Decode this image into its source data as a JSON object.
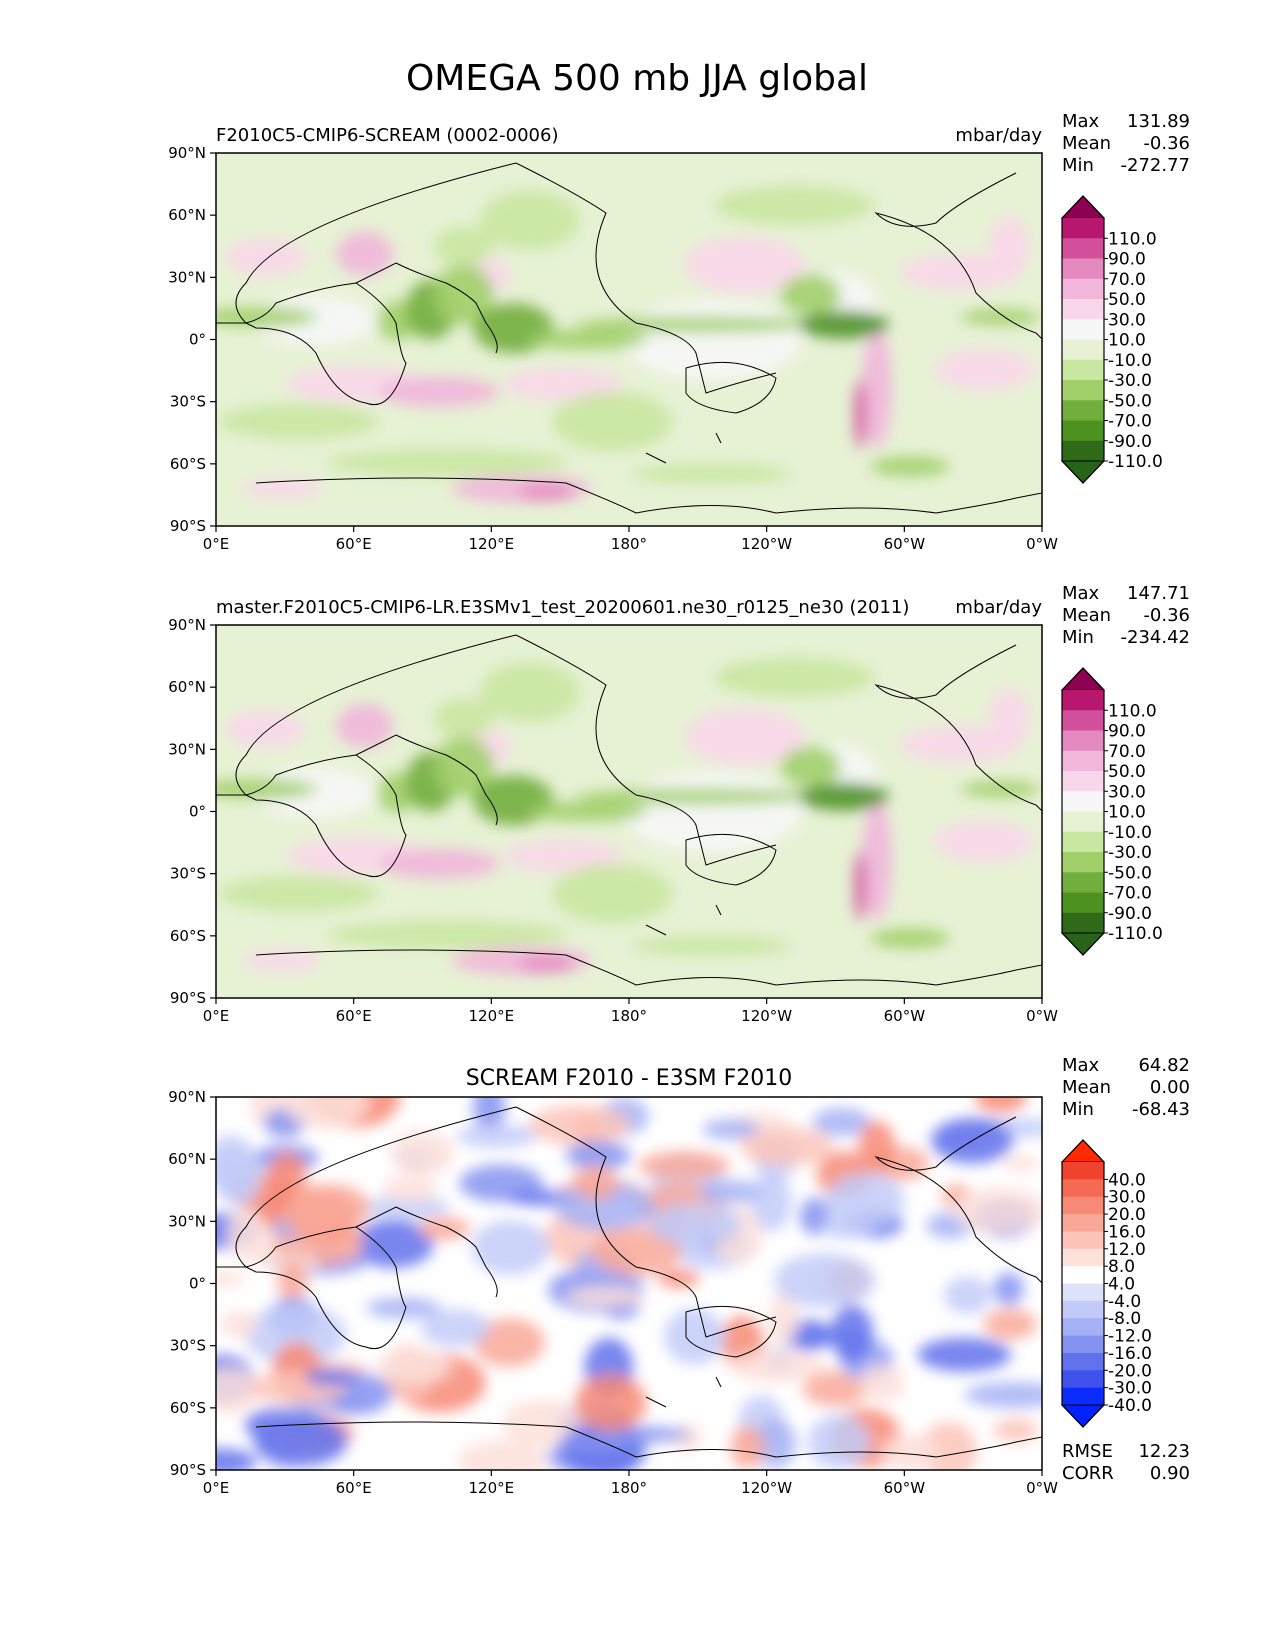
{
  "title": "OMEGA 500 mb JJA global",
  "x_ticks": [
    "0°E",
    "60°E",
    "120°E",
    "180°",
    "120°W",
    "60°W",
    "0°W"
  ],
  "y_ticks": [
    "90°N",
    "60°N",
    "30°N",
    "0°",
    "30°S",
    "60°S",
    "90°S"
  ],
  "panels": [
    {
      "left_title": "F2010C5-CMIP6-SCREAM (0002-0006)",
      "center_title": "",
      "units": "mbar/day",
      "stats": [
        {
          "label": "Max",
          "value": "131.89"
        },
        {
          "label": "Mean",
          "value": "-0.36"
        },
        {
          "label": "Min",
          "value": "-272.77"
        }
      ],
      "colorbar": {
        "labels": [
          "110.0",
          "90.0",
          "70.0",
          "50.0",
          "30.0",
          "10.0",
          "-10.0",
          "-30.0",
          "-50.0",
          "-70.0",
          "-90.0",
          "-110.0"
        ],
        "colors": [
          "#8e0152",
          "#b8176f",
          "#d24f9c",
          "#e489bf",
          "#f1b6da",
          "#f9d7ea",
          "#f7f7f7",
          "#e7f2d5",
          "#c9e7a1",
          "#a1cf6a",
          "#72ae3d",
          "#4d9221",
          "#2f6a18",
          "#276419"
        ]
      }
    },
    {
      "left_title": "master.F2010C5-CMIP6-LR.E3SMv1_test_20200601.ne30_r0125_ne30 (2011)",
      "center_title": "",
      "units": "mbar/day",
      "stats": [
        {
          "label": "Max",
          "value": "147.71"
        },
        {
          "label": "Mean",
          "value": "-0.36"
        },
        {
          "label": "Min",
          "value": "-234.42"
        }
      ],
      "colorbar": {
        "labels": [
          "110.0",
          "90.0",
          "70.0",
          "50.0",
          "30.0",
          "10.0",
          "-10.0",
          "-30.0",
          "-50.0",
          "-70.0",
          "-90.0",
          "-110.0"
        ],
        "colors": [
          "#8e0152",
          "#b8176f",
          "#d24f9c",
          "#e489bf",
          "#f1b6da",
          "#f9d7ea",
          "#f7f7f7",
          "#e7f2d5",
          "#c9e7a1",
          "#a1cf6a",
          "#72ae3d",
          "#4d9221",
          "#2f6a18",
          "#276419"
        ]
      }
    },
    {
      "left_title": "",
      "center_title": "SCREAM F2010 - E3SM F2010",
      "units": "",
      "stats": [
        {
          "label": "Max",
          "value": "64.82"
        },
        {
          "label": "Mean",
          "value": "0.00"
        },
        {
          "label": "Min",
          "value": "-68.43"
        }
      ],
      "colorbar": {
        "labels": [
          "40.0",
          "30.0",
          "20.0",
          "16.0",
          "12.0",
          "8.0",
          "4.0",
          "-4.0",
          "-8.0",
          "-12.0",
          "-16.0",
          "-20.0",
          "-30.0",
          "-40.0"
        ],
        "colors": [
          "#ff2a00",
          "#f0432e",
          "#f46a52",
          "#f78a76",
          "#f9a898",
          "#fbc4b9",
          "#fde1da",
          "#ffffff",
          "#dde2fb",
          "#c2cbf8",
          "#a5b1f4",
          "#8593f0",
          "#6171ec",
          "#3f52ee",
          "#0a2cff",
          "#0022ff"
        ]
      },
      "extra_stats": [
        {
          "label": "RMSE",
          "value": "12.23"
        },
        {
          "label": "CORR",
          "value": "0.90"
        }
      ]
    }
  ],
  "chart_data": [
    {
      "type": "heatmap",
      "title": "OMEGA 500 mb JJA global",
      "subtitle": "F2010C5-CMIP6-SCREAM (0002-0006)",
      "units": "mbar/day",
      "x_range": [
        0,
        360
      ],
      "y_range": [
        -90,
        90
      ],
      "x_tick_labels": [
        "0°E",
        "60°E",
        "120°E",
        "180°",
        "120°W",
        "60°W",
        "0°W"
      ],
      "y_tick_labels": [
        "90°N",
        "60°N",
        "30°N",
        "0°",
        "30°S",
        "60°S",
        "90°S"
      ],
      "contour_levels": [
        -110,
        -90,
        -70,
        -50,
        -30,
        -10,
        10,
        30,
        50,
        70,
        90,
        110
      ],
      "stats": {
        "max": 131.89,
        "mean": -0.36,
        "min": -272.77
      }
    },
    {
      "type": "heatmap",
      "subtitle": "master.F2010C5-CMIP6-LR.E3SMv1_test_20200601.ne30_r0125_ne30 (2011)",
      "units": "mbar/day",
      "x_range": [
        0,
        360
      ],
      "y_range": [
        -90,
        90
      ],
      "contour_levels": [
        -110,
        -90,
        -70,
        -50,
        -30,
        -10,
        10,
        30,
        50,
        70,
        90,
        110
      ],
      "stats": {
        "max": 147.71,
        "mean": -0.36,
        "min": -234.42
      }
    },
    {
      "type": "heatmap",
      "subtitle": "SCREAM F2010 - E3SM F2010",
      "x_range": [
        0,
        360
      ],
      "y_range": [
        -90,
        90
      ],
      "contour_levels": [
        -40,
        -30,
        -20,
        -16,
        -12,
        -8,
        -4,
        4,
        8,
        12,
        16,
        20,
        30,
        40
      ],
      "stats": {
        "max": 64.82,
        "mean": 0.0,
        "min": -68.43,
        "rmse": 12.23,
        "corr": 0.9
      }
    }
  ]
}
